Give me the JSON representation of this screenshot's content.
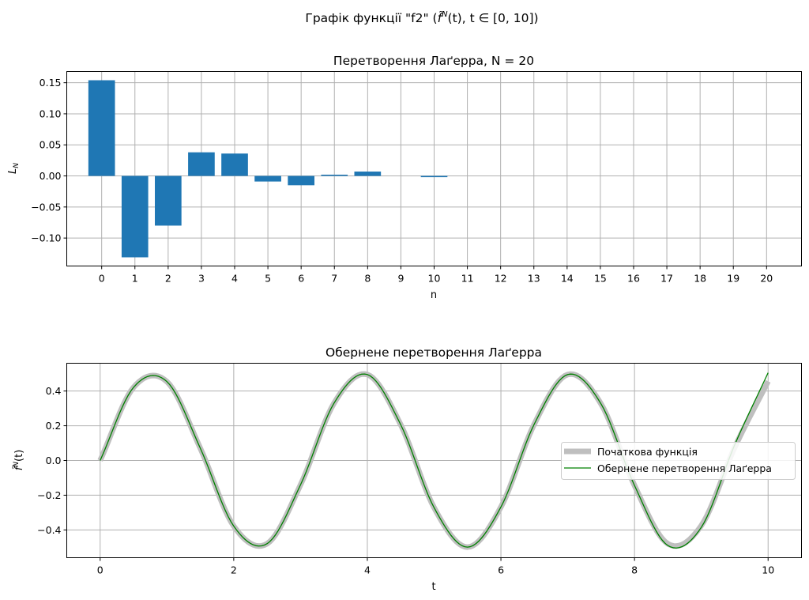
{
  "figure": {
    "suptitle_prefix": "Графік функції \"f2\" (",
    "suptitle_math": "f̃",
    "suptitle_sup": "N",
    "suptitle_suffix": "(t), t ∈ [0, 10])"
  },
  "chart_data": [
    {
      "type": "bar",
      "title": "Перетворення Лаґерра, N = 20",
      "xlabel": "n",
      "ylabel_main": "L",
      "ylabel_sub": "N",
      "categories": [
        "0",
        "1",
        "2",
        "3",
        "4",
        "5",
        "6",
        "7",
        "8",
        "9",
        "10",
        "11",
        "12",
        "13",
        "14",
        "15",
        "16",
        "17",
        "18",
        "19",
        "20"
      ],
      "values": [
        0.154,
        -0.131,
        -0.08,
        0.038,
        0.036,
        -0.009,
        -0.015,
        0.002,
        0.007,
        0.0,
        -0.002,
        0.0,
        0.0,
        0.0,
        0.0,
        0.0,
        0.0,
        0.0,
        0.0,
        0.0,
        0.0
      ],
      "ylim": [
        -0.145,
        0.168
      ],
      "yticks": [
        -0.1,
        -0.05,
        0.0,
        0.05,
        0.1,
        0.15
      ],
      "ytick_labels": [
        "−0.10",
        "−0.05",
        "0.00",
        "0.05",
        "0.10",
        "0.15"
      ],
      "grid": true,
      "color": "#1f77b4"
    },
    {
      "type": "line",
      "title": "Обернене перетворення Лаґерра",
      "xlabel": "t",
      "ylabel_main": "f̃",
      "ylabel_sup": "N",
      "ylabel_suffix": "(t)",
      "xlim": [
        -0.5,
        10.5
      ],
      "ylim": [
        -0.56,
        0.56
      ],
      "xticks": [
        0,
        2,
        4,
        6,
        8,
        10
      ],
      "xtick_labels": [
        "0",
        "2",
        "4",
        "6",
        "8",
        "10"
      ],
      "yticks": [
        -0.4,
        -0.2,
        0.0,
        0.2,
        0.4
      ],
      "ytick_labels": [
        "−0.4",
        "−0.2",
        "0.0",
        "0.2",
        "0.4"
      ],
      "grid": true,
      "legend_position": "center-right",
      "x": [
        0.0,
        0.5,
        1.0,
        1.5,
        2.0,
        2.5,
        3.0,
        3.5,
        4.0,
        4.5,
        5.0,
        5.5,
        6.0,
        6.5,
        7.0,
        7.5,
        8.0,
        8.5,
        9.0,
        9.5,
        10.0
      ],
      "series": [
        {
          "name": "Початкова функція",
          "color": "#bfbfbf",
          "values": [
            0.0,
            0.421,
            0.454,
            0.07,
            -0.378,
            -0.479,
            -0.14,
            0.329,
            0.495,
            0.206,
            -0.272,
            -0.499,
            -0.268,
            0.21,
            0.495,
            0.325,
            -0.144,
            -0.48,
            -0.375,
            0.075,
            0.456
          ]
        },
        {
          "name": "Обернене перетворення Лаґерра",
          "color": "#008000",
          "values": [
            0.0,
            0.421,
            0.454,
            0.07,
            -0.378,
            -0.479,
            -0.14,
            0.329,
            0.495,
            0.206,
            -0.272,
            -0.499,
            -0.268,
            0.21,
            0.495,
            0.325,
            -0.144,
            -0.49,
            -0.385,
            0.09,
            0.505
          ]
        }
      ]
    }
  ]
}
